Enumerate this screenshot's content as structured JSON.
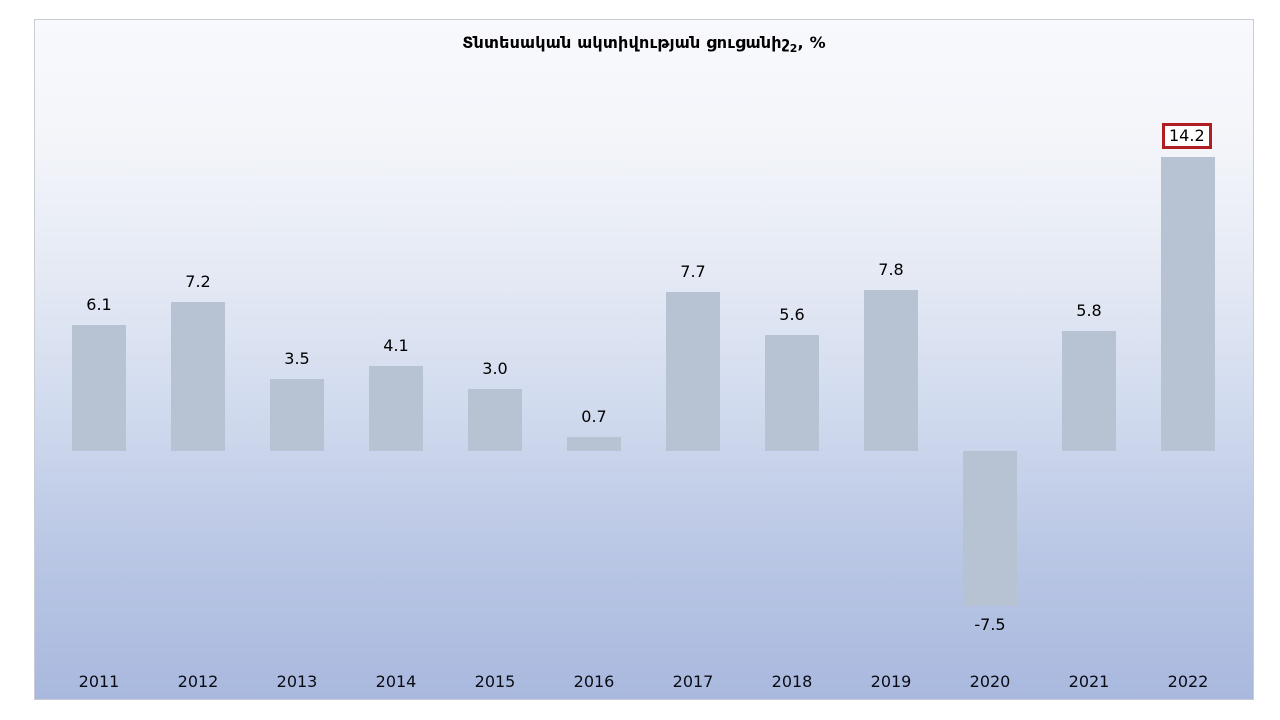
{
  "title": {
    "main": "Տնտեսական ակտիվության ցուցանիշ",
    "subscript": "2",
    "suffix": ", %"
  },
  "colors": {
    "bar": "#b7c3d3",
    "frame_border": "#c9cdd3",
    "background_top": "#f8f9fc",
    "background_bottom": "#a9b8de",
    "label_text": "#000000",
    "highlight_box_border": "#b01e21",
    "highlight_box_fill": "#ffffff"
  },
  "chart_data": {
    "type": "bar",
    "title": "Տնտեսական ակտիվության ցուցանիշ₂, %",
    "categories": [
      "2011",
      "2012",
      "2013",
      "2014",
      "2015",
      "2016",
      "2017",
      "2018",
      "2019",
      "2020",
      "2021",
      "2022"
    ],
    "values": [
      6.1,
      7.2,
      3.5,
      4.1,
      3.0,
      0.7,
      7.7,
      5.6,
      7.8,
      -7.5,
      5.8,
      14.2
    ],
    "labels": [
      "6.1",
      "7.2",
      "3.5",
      "4.1",
      "3.0",
      "0.7",
      "7.7",
      "5.6",
      "7.8",
      "-7.5",
      "5.8",
      "14.2"
    ],
    "xlabel": "",
    "ylabel": "",
    "ylim": [
      -10,
      16
    ],
    "grid": false,
    "legend": false,
    "axis_lines": false,
    "data_labels": true,
    "bar_color": "#b7c3d3",
    "highlighted_point": {
      "category": "2022",
      "label": "14.2",
      "index": 11,
      "style": "red-box"
    }
  }
}
